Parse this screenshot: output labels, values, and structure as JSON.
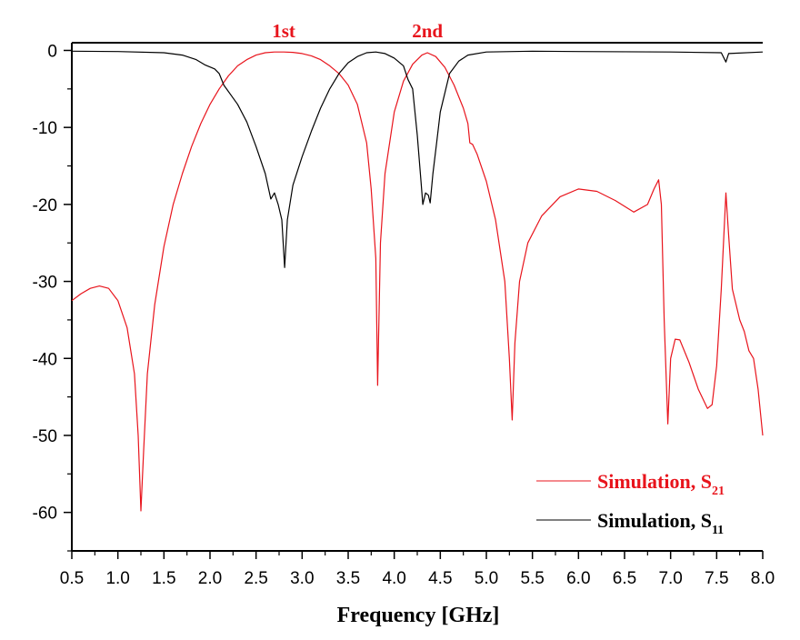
{
  "chart_data": {
    "type": "line",
    "title": "",
    "xlabel": "Frequency [GHz]",
    "ylabel": "",
    "xlim": [
      0.5,
      8.0
    ],
    "ylim": [
      -65,
      1
    ],
    "xticks": [
      "0.5",
      "1.0",
      "1.5",
      "2.0",
      "2.5",
      "3.0",
      "3.5",
      "4.0",
      "4.5",
      "5.0",
      "5.5",
      "6.0",
      "6.5",
      "7.0",
      "7.5",
      "8.0"
    ],
    "yticks": [
      "0",
      "-10",
      "-20",
      "-30",
      "-40",
      "-50",
      "-60"
    ],
    "grid": false,
    "legend_position": "bottom-right",
    "annotations": [
      {
        "text": "1st",
        "x": 2.8,
        "color": "#e8141c"
      },
      {
        "text": "2nd",
        "x": 4.36,
        "color": "#e8141c"
      }
    ],
    "series": [
      {
        "name": "Simulation, S21",
        "legend_main": "Simulation, S",
        "legend_sub": "21",
        "color": "#e8141c",
        "points": [
          [
            0.5,
            -32.5
          ],
          [
            0.6,
            -31.6
          ],
          [
            0.7,
            -30.9
          ],
          [
            0.8,
            -30.6
          ],
          [
            0.9,
            -30.9
          ],
          [
            1.0,
            -32.5
          ],
          [
            1.1,
            -36
          ],
          [
            1.18,
            -42
          ],
          [
            1.22,
            -50
          ],
          [
            1.25,
            -59.8
          ],
          [
            1.28,
            -52
          ],
          [
            1.32,
            -42
          ],
          [
            1.4,
            -33
          ],
          [
            1.5,
            -25.5
          ],
          [
            1.6,
            -20
          ],
          [
            1.7,
            -16
          ],
          [
            1.8,
            -12.5
          ],
          [
            1.9,
            -9.5
          ],
          [
            2.0,
            -7
          ],
          [
            2.1,
            -5
          ],
          [
            2.2,
            -3.3
          ],
          [
            2.3,
            -2
          ],
          [
            2.4,
            -1.2
          ],
          [
            2.5,
            -0.6
          ],
          [
            2.6,
            -0.3
          ],
          [
            2.7,
            -0.2
          ],
          [
            2.8,
            -0.2
          ],
          [
            2.9,
            -0.25
          ],
          [
            3.0,
            -0.4
          ],
          [
            3.1,
            -0.7
          ],
          [
            3.2,
            -1.2
          ],
          [
            3.3,
            -2
          ],
          [
            3.4,
            -3
          ],
          [
            3.5,
            -4.5
          ],
          [
            3.6,
            -7
          ],
          [
            3.7,
            -12
          ],
          [
            3.75,
            -18
          ],
          [
            3.8,
            -27
          ],
          [
            3.82,
            -43.5
          ],
          [
            3.85,
            -25
          ],
          [
            3.9,
            -16
          ],
          [
            4.0,
            -8
          ],
          [
            4.1,
            -4
          ],
          [
            4.2,
            -1.8
          ],
          [
            4.3,
            -0.6
          ],
          [
            4.36,
            -0.3
          ],
          [
            4.45,
            -0.8
          ],
          [
            4.55,
            -2.2
          ],
          [
            4.65,
            -4.5
          ],
          [
            4.75,
            -7.5
          ],
          [
            4.8,
            -9.5
          ],
          [
            4.82,
            -12
          ],
          [
            4.85,
            -12.2
          ],
          [
            4.9,
            -13.5
          ],
          [
            5.0,
            -17
          ],
          [
            5.1,
            -22
          ],
          [
            5.2,
            -30
          ],
          [
            5.25,
            -40
          ],
          [
            5.28,
            -48
          ],
          [
            5.31,
            -38
          ],
          [
            5.36,
            -30
          ],
          [
            5.45,
            -25
          ],
          [
            5.6,
            -21.5
          ],
          [
            5.8,
            -19
          ],
          [
            6.0,
            -18
          ],
          [
            6.2,
            -18.3
          ],
          [
            6.4,
            -19.5
          ],
          [
            6.6,
            -21
          ],
          [
            6.75,
            -20
          ],
          [
            6.82,
            -18
          ],
          [
            6.87,
            -16.8
          ],
          [
            6.9,
            -20
          ],
          [
            6.93,
            -35
          ],
          [
            6.97,
            -48.5
          ],
          [
            7.0,
            -40
          ],
          [
            7.05,
            -37.5
          ],
          [
            7.1,
            -37.6
          ],
          [
            7.2,
            -40.5
          ],
          [
            7.3,
            -44
          ],
          [
            7.4,
            -46.5
          ],
          [
            7.45,
            -46
          ],
          [
            7.5,
            -41
          ],
          [
            7.55,
            -31
          ],
          [
            7.6,
            -18.5
          ],
          [
            7.63,
            -24
          ],
          [
            7.67,
            -31
          ],
          [
            7.75,
            -35
          ],
          [
            7.8,
            -36.5
          ],
          [
            7.85,
            -39
          ],
          [
            7.9,
            -40
          ],
          [
            7.95,
            -44
          ],
          [
            8.0,
            -50
          ]
        ]
      },
      {
        "name": "Simulation, S11",
        "legend_main": "Simulation, S",
        "legend_sub": "11",
        "color": "#000000",
        "points": [
          [
            0.5,
            -0.1
          ],
          [
            1.0,
            -0.15
          ],
          [
            1.5,
            -0.3
          ],
          [
            1.7,
            -0.6
          ],
          [
            1.85,
            -1.2
          ],
          [
            1.95,
            -1.9
          ],
          [
            2.05,
            -2.4
          ],
          [
            2.1,
            -3
          ],
          [
            2.15,
            -4.5
          ],
          [
            2.3,
            -7
          ],
          [
            2.4,
            -9.3
          ],
          [
            2.5,
            -12.5
          ],
          [
            2.6,
            -16
          ],
          [
            2.66,
            -19.3
          ],
          [
            2.7,
            -18.5
          ],
          [
            2.74,
            -20
          ],
          [
            2.78,
            -22
          ],
          [
            2.81,
            -28.2
          ],
          [
            2.84,
            -22
          ],
          [
            2.9,
            -17.5
          ],
          [
            3.0,
            -13.8
          ],
          [
            3.1,
            -10.5
          ],
          [
            3.2,
            -7.5
          ],
          [
            3.3,
            -5
          ],
          [
            3.4,
            -3
          ],
          [
            3.5,
            -1.6
          ],
          [
            3.6,
            -0.8
          ],
          [
            3.7,
            -0.3
          ],
          [
            3.8,
            -0.2
          ],
          [
            3.9,
            -0.4
          ],
          [
            4.0,
            -1
          ],
          [
            4.1,
            -2
          ],
          [
            4.15,
            -3.8
          ],
          [
            4.2,
            -5
          ],
          [
            4.25,
            -11
          ],
          [
            4.29,
            -17
          ],
          [
            4.31,
            -20
          ],
          [
            4.34,
            -18.5
          ],
          [
            4.37,
            -18.8
          ],
          [
            4.39,
            -19.8
          ],
          [
            4.42,
            -16
          ],
          [
            4.46,
            -12
          ],
          [
            4.5,
            -8
          ],
          [
            4.6,
            -3
          ],
          [
            4.7,
            -1.4
          ],
          [
            4.8,
            -0.6
          ],
          [
            5.0,
            -0.2
          ],
          [
            5.5,
            -0.1
          ],
          [
            6.0,
            -0.15
          ],
          [
            7.0,
            -0.2
          ],
          [
            7.55,
            -0.3
          ],
          [
            7.6,
            -1.5
          ],
          [
            7.63,
            -0.4
          ],
          [
            8.0,
            -0.2
          ]
        ]
      }
    ]
  }
}
